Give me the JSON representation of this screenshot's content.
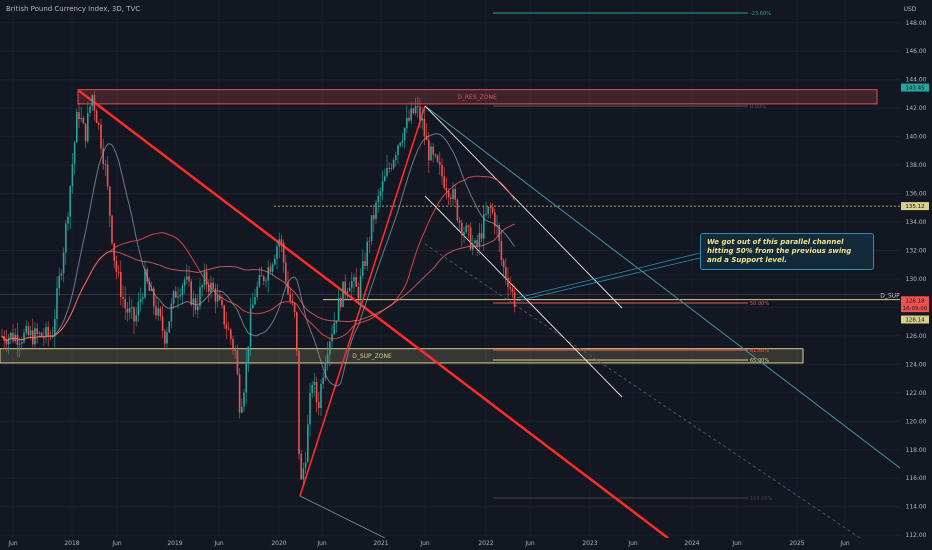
{
  "header": {
    "title": "British Pound Currency Index, 3D, TVC"
  },
  "chart_data": {
    "type": "candlestick",
    "currency": "USD",
    "y_ticks": [
      "148.00",
      "146.00",
      "144.00",
      "142.00",
      "140.00",
      "138.00",
      "136.00",
      "134.00",
      "132.00",
      "130.00",
      "128.00",
      "126.00",
      "124.00",
      "122.00",
      "120.00",
      "118.00",
      "116.00",
      "114.00",
      "112.00"
    ],
    "x_ticks": [
      "Jun",
      "2018",
      "Jun",
      "2019",
      "Jun",
      "2020",
      "Jun",
      "2021",
      "Jun",
      "2022",
      "Jun",
      "2023",
      "Jun",
      "2024",
      "Jun",
      "2025",
      "Jun"
    ],
    "ylim": [
      111.8,
      149.6
    ],
    "zones": [
      {
        "label": "D_RES_ZONE",
        "top": 143.3,
        "bottom": 142.3,
        "color": "#e05252"
      },
      {
        "label": "D_SUP_ZONE",
        "top": 125.1,
        "bottom": 124.1,
        "color": "#d8cf8c"
      }
    ],
    "levels": [
      {
        "label": "D_SUP",
        "value": 128.55
      }
    ],
    "fib_labels": [
      "-23.60%",
      "0.00%",
      "50.00%",
      "61.80%",
      "65.00%",
      "100.00%"
    ],
    "price_tags": [
      {
        "value": "143.45",
        "price": 143.45,
        "color": "#26a69a"
      },
      {
        "value": "135.12",
        "price": 135.12,
        "color": "#d8cf8c"
      },
      {
        "value": "128.18",
        "price": 128.5,
        "color": "#ef5350"
      },
      {
        "value": "16:09:00",
        "price": 127.95,
        "color": "#ef5350"
      },
      {
        "value": "128.14",
        "price": 127.15,
        "color": "#d8cf8c"
      }
    ],
    "price_path": [
      [
        52,
        126
      ],
      [
        65,
        133
      ],
      [
        78,
        142
      ],
      [
        85,
        140
      ],
      [
        92,
        143
      ],
      [
        98,
        141
      ],
      [
        105,
        138
      ],
      [
        115,
        131
      ],
      [
        125,
        128
      ],
      [
        135,
        127
      ],
      [
        145,
        130
      ],
      [
        155,
        128
      ],
      [
        165,
        126
      ],
      [
        175,
        129
      ],
      [
        185,
        130
      ],
      [
        195,
        128
      ],
      [
        205,
        130
      ],
      [
        215,
        129
      ],
      [
        225,
        127
      ],
      [
        235,
        125
      ],
      [
        240,
        121
      ],
      [
        245,
        123
      ],
      [
        250,
        127
      ],
      [
        255,
        129
      ],
      [
        262,
        130
      ],
      [
        270,
        131
      ],
      [
        280,
        133
      ],
      [
        288,
        129
      ],
      [
        296,
        127
      ],
      [
        300,
        115
      ],
      [
        306,
        118
      ],
      [
        312,
        123
      ],
      [
        318,
        121
      ],
      [
        326,
        125
      ],
      [
        334,
        127
      ],
      [
        342,
        129
      ],
      [
        350,
        130
      ],
      [
        358,
        129
      ],
      [
        364,
        131
      ],
      [
        372,
        134
      ],
      [
        380,
        136
      ],
      [
        390,
        138
      ],
      [
        400,
        140
      ],
      [
        408,
        141
      ],
      [
        416,
        142
      ],
      [
        422,
        141
      ],
      [
        428,
        139
      ],
      [
        436,
        138
      ],
      [
        444,
        137
      ],
      [
        452,
        136
      ],
      [
        460,
        134
      ],
      [
        468,
        133
      ],
      [
        476,
        132
      ],
      [
        484,
        134
      ],
      [
        490,
        135
      ],
      [
        496,
        134
      ],
      [
        502,
        131
      ],
      [
        508,
        130
      ],
      [
        512,
        129
      ],
      [
        516,
        128.2
      ]
    ],
    "note": "We got out of this parallel channel hitting 50% from the previous swing and a Support level."
  }
}
